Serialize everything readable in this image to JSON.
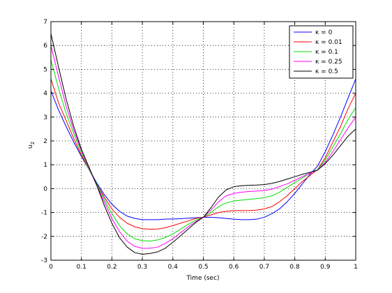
{
  "chart_data": {
    "type": "line",
    "title": "",
    "xlabel": "Time (sec)",
    "ylabel": "u",
    "ylabel_subscript": "2",
    "xlim": [
      0,
      1
    ],
    "ylim": [
      -3,
      7
    ],
    "xticks": [
      0,
      0.1,
      0.2,
      0.3,
      0.4,
      0.5,
      0.6,
      0.7,
      0.8,
      0.9,
      1
    ],
    "yticks": [
      -3,
      -2,
      -1,
      0,
      1,
      2,
      3,
      4,
      5,
      6,
      7
    ],
    "xtick_labels": [
      "0",
      "0.1",
      "0.2",
      "0.3",
      "0.4",
      "0.5",
      "0.6",
      "0.7",
      "0.8",
      "0.9",
      "1"
    ],
    "ytick_labels": [
      "-3",
      "-2",
      "-1",
      "0",
      "1",
      "2",
      "3",
      "4",
      "5",
      "6",
      "7"
    ],
    "grid": true,
    "legend_position": "top-right",
    "x": [
      0,
      0.025,
      0.05,
      0.075,
      0.1,
      0.125,
      0.15,
      0.175,
      0.2,
      0.225,
      0.25,
      0.275,
      0.3,
      0.325,
      0.35,
      0.375,
      0.4,
      0.425,
      0.45,
      0.475,
      0.5,
      0.525,
      0.55,
      0.575,
      0.6,
      0.625,
      0.65,
      0.675,
      0.7,
      0.725,
      0.75,
      0.775,
      0.8,
      0.825,
      0.85,
      0.875,
      0.9,
      0.925,
      0.95,
      0.975,
      1
    ],
    "series": [
      {
        "name": "κ = 0",
        "color": "#0000ff",
        "values": [
          4.1,
          3.3,
          2.6,
          1.95,
          1.35,
          0.8,
          0.25,
          -0.25,
          -0.65,
          -0.95,
          -1.15,
          -1.25,
          -1.3,
          -1.3,
          -1.3,
          -1.28,
          -1.27,
          -1.26,
          -1.24,
          -1.22,
          -1.2,
          -1.2,
          -1.22,
          -1.25,
          -1.28,
          -1.3,
          -1.3,
          -1.28,
          -1.2,
          -1.05,
          -0.85,
          -0.55,
          -0.2,
          0.2,
          0.6,
          0.95,
          1.55,
          2.25,
          3.0,
          3.8,
          4.6
        ]
      },
      {
        "name": "κ = 0.01",
        "color": "#ff0000",
        "values": [
          4.6,
          3.6,
          2.85,
          2.1,
          1.4,
          0.8,
          0.2,
          -0.35,
          -0.85,
          -1.2,
          -1.45,
          -1.6,
          -1.68,
          -1.7,
          -1.69,
          -1.64,
          -1.55,
          -1.45,
          -1.35,
          -1.25,
          -1.2,
          -1.1,
          -1.0,
          -0.95,
          -0.92,
          -0.92,
          -0.92,
          -0.9,
          -0.85,
          -0.75,
          -0.55,
          -0.3,
          0.0,
          0.3,
          0.55,
          0.8,
          1.3,
          1.95,
          2.6,
          3.35,
          4.0
        ]
      },
      {
        "name": "κ = 0.1",
        "color": "#00dd00",
        "values": [
          5.4,
          4.2,
          3.15,
          2.3,
          1.5,
          0.8,
          0.2,
          -0.45,
          -1.05,
          -1.55,
          -1.9,
          -2.1,
          -2.18,
          -2.2,
          -2.15,
          -2.05,
          -1.9,
          -1.7,
          -1.5,
          -1.32,
          -1.2,
          -1.0,
          -0.75,
          -0.6,
          -0.52,
          -0.48,
          -0.45,
          -0.42,
          -0.38,
          -0.3,
          -0.15,
          0.05,
          0.25,
          0.45,
          0.65,
          0.8,
          1.2,
          1.75,
          2.3,
          2.9,
          3.4
        ]
      },
      {
        "name": "κ = 0.25",
        "color": "#ff00ff",
        "values": [
          6.0,
          4.7,
          3.45,
          2.45,
          1.6,
          0.85,
          0.15,
          -0.55,
          -1.25,
          -1.8,
          -2.2,
          -2.42,
          -2.5,
          -2.5,
          -2.45,
          -2.3,
          -2.1,
          -1.85,
          -1.6,
          -1.38,
          -1.2,
          -0.9,
          -0.55,
          -0.3,
          -0.2,
          -0.15,
          -0.12,
          -0.1,
          -0.08,
          -0.02,
          0.08,
          0.2,
          0.35,
          0.5,
          0.65,
          0.78,
          1.1,
          1.55,
          2.05,
          2.55,
          3.0
        ]
      },
      {
        "name": "κ = 0.5",
        "color": "#000000",
        "values": [
          6.5,
          5.1,
          3.75,
          2.6,
          1.65,
          0.9,
          0.15,
          -0.7,
          -1.45,
          -2.05,
          -2.45,
          -2.68,
          -2.75,
          -2.72,
          -2.65,
          -2.5,
          -2.25,
          -1.98,
          -1.7,
          -1.42,
          -1.2,
          -0.8,
          -0.35,
          -0.05,
          0.08,
          0.12,
          0.14,
          0.15,
          0.17,
          0.22,
          0.3,
          0.4,
          0.5,
          0.6,
          0.68,
          0.78,
          1.05,
          1.4,
          1.8,
          2.2,
          2.5
        ]
      }
    ]
  }
}
